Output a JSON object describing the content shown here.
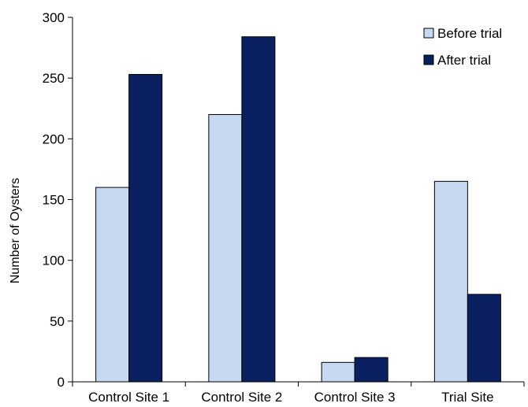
{
  "chart_data": {
    "type": "bar",
    "title": "",
    "xlabel": "",
    "ylabel": "Number of Oysters",
    "ylim": [
      0,
      300
    ],
    "yticks": [
      0,
      50,
      100,
      150,
      200,
      250,
      300
    ],
    "grid": false,
    "legend_position": "top-right",
    "categories": [
      "Control Site 1",
      "Control Site 2",
      "Control Site 3",
      "Trial Site"
    ],
    "series": [
      {
        "name": "Before trial",
        "color": "#c6d9f1",
        "values": [
          160,
          220,
          16,
          165
        ]
      },
      {
        "name": "After trial",
        "color": "#0a2060",
        "values": [
          253,
          284,
          20,
          72
        ]
      }
    ]
  }
}
